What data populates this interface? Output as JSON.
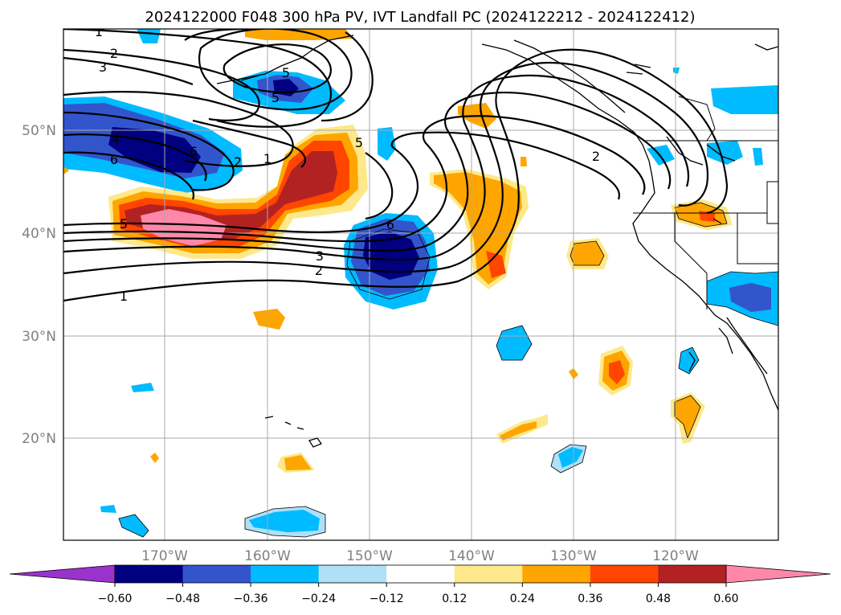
{
  "title": "2024122000 F048 300 hPa PV, IVT Landfall PC (2024122212 - 2024122412)",
  "map": {
    "lon_ticks": [
      "170°W",
      "160°W",
      "150°W",
      "140°W",
      "130°W",
      "120°W"
    ],
    "lat_ticks": [
      "50°N",
      "40°N",
      "30°N",
      "20°N"
    ]
  },
  "colorbar": {
    "ticks": [
      "−0.60",
      "−0.48",
      "−0.36",
      "−0.24",
      "−0.12",
      "0.12",
      "0.24",
      "0.36",
      "0.48",
      "0.60"
    ],
    "colors": [
      "#9933cc",
      "#000080",
      "#3355cc",
      "#00bbff",
      "#aee0f8",
      "#ffffff",
      "#fde98b",
      "#ffa500",
      "#ff4500",
      "#b22222",
      "#ff88aa"
    ]
  },
  "pv_contour_labels": [
    "1",
    "2",
    "3",
    "4",
    "6",
    "5",
    "5",
    "1",
    "2",
    "5",
    "6",
    "3",
    "2",
    "1",
    "6",
    "5",
    "2"
  ]
}
